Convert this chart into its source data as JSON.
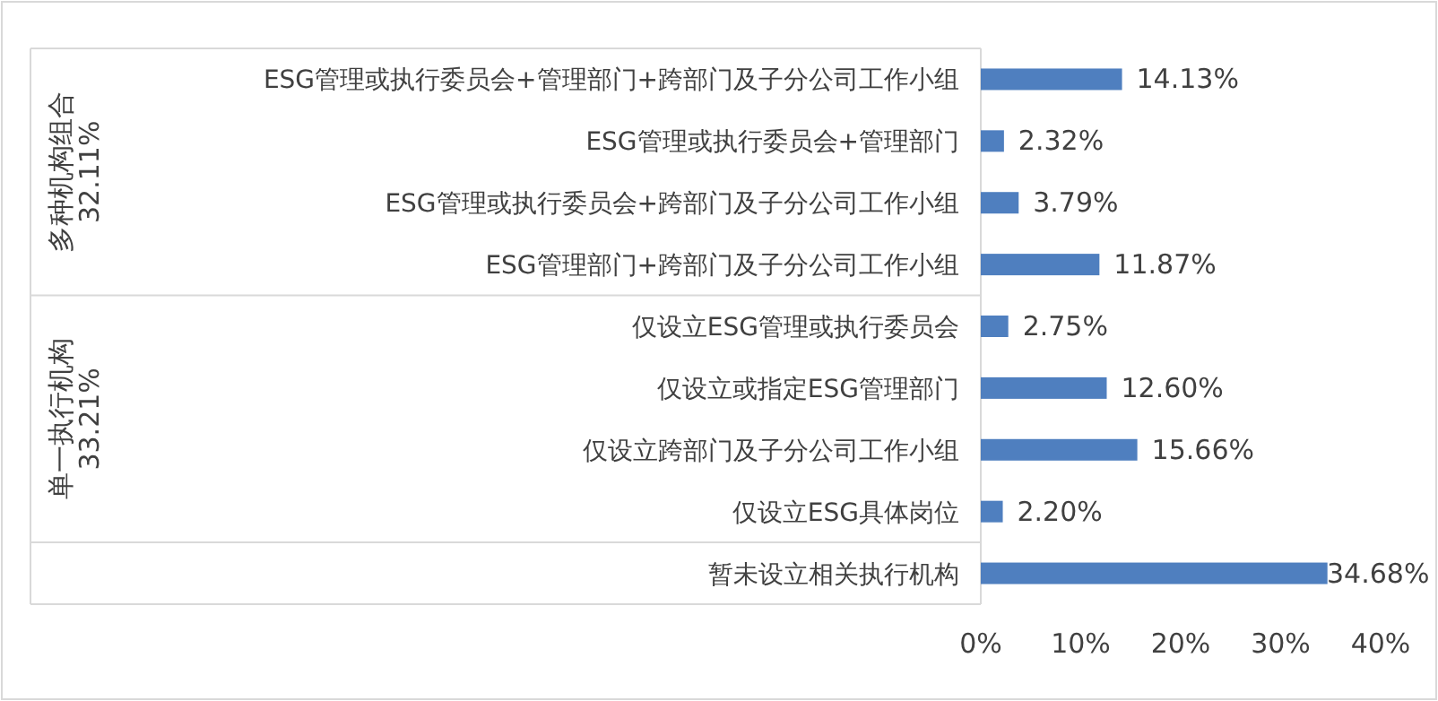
{
  "chart_data": {
    "type": "bar",
    "orientation": "horizontal",
    "categories": [
      "ESG管理或执行委员会+管理部门+跨部门及子分公司工作小组",
      "ESG管理或执行委员会+管理部门",
      "ESG管理或执行委员会+跨部门及子分公司工作小组",
      "ESG管理部门+跨部门及子分公司工作小组",
      "仅设立ESG管理或执行委员会",
      "仅设立或指定ESG管理部门",
      "仅设立跨部门及子分公司工作小组",
      "仅设立ESG具体岗位",
      "暂未设立相关执行机构"
    ],
    "values": [
      14.13,
      2.32,
      3.79,
      11.87,
      2.75,
      12.6,
      15.66,
      2.2,
      34.68
    ],
    "value_labels": [
      "14.13%",
      "2.32%",
      "3.79%",
      "11.87%",
      "2.75%",
      "12.60%",
      "15.66%",
      "2.20%",
      "34.68%"
    ],
    "color": "#4f7fbf",
    "xlim": [
      0,
      40
    ],
    "xticks": [
      {
        "value": 0,
        "label": "0%"
      },
      {
        "value": 10,
        "label": "10%"
      },
      {
        "value": 20,
        "label": "20%"
      },
      {
        "value": 30,
        "label": "30%"
      },
      {
        "value": 40,
        "label": "40%"
      }
    ],
    "annotations": [
      "多种机构组合\n32.11%",
      "单一执行机构\n33.21%"
    ],
    "grid": false
  }
}
